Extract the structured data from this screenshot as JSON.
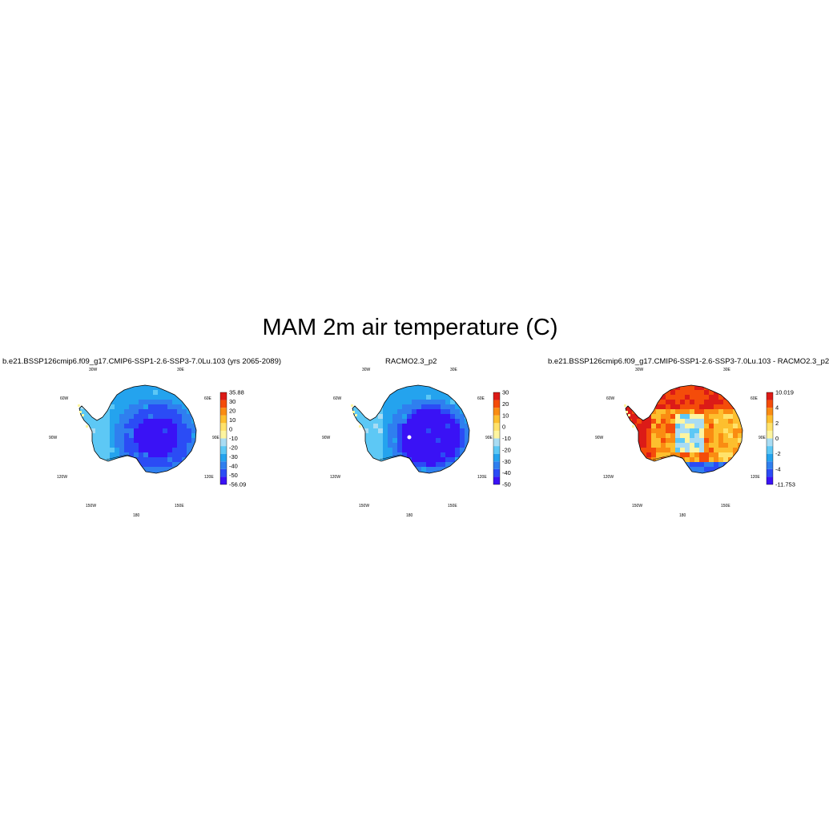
{
  "title": "MAM 2m air temperature (C)",
  "lon_labels": {
    "l30w": "30W",
    "l30e": "30E",
    "l60w": "60W",
    "l60e": "60E",
    "l90w": "90W",
    "l90e": "90E",
    "l120w": "120W",
    "l120e": "120E",
    "l150w": "150W",
    "l150e": "150E",
    "l180": "180"
  },
  "panels": [
    {
      "title": "b.e21.BSSP126cmip6.f09_g17.CMIP6-SSP1-2.6-SSP3-7.0Lu.103 (yrs 2065-2089)",
      "field": "cold",
      "colorbar": {
        "colors": [
          "#3a12f5",
          "#2b4cf5",
          "#2f7fef",
          "#24a3ee",
          "#5dc8f5",
          "#a9dcf3",
          "#fdf5a0",
          "#ffe26a",
          "#fdbf2e",
          "#fa8c12",
          "#f44c0a",
          "#dc1b17"
        ],
        "labels": [
          "-56.09",
          "-50",
          "-40",
          "-30",
          "-20",
          "-10",
          "0",
          "10",
          "20",
          "30",
          "35.88"
        ]
      }
    },
    {
      "title": "RACMO2.3_p2",
      "field": "cold_racmo",
      "colorbar": {
        "colors": [
          "#3a12f5",
          "#2b4cf5",
          "#2f7fef",
          "#24a3ee",
          "#5dc8f5",
          "#a9dcf3",
          "#fdf5a0",
          "#ffe26a",
          "#fdbf2e",
          "#fa8c12",
          "#f44c0a",
          "#dc1b17"
        ],
        "labels": [
          "-50",
          "-40",
          "-30",
          "-20",
          "-10",
          "0",
          "10",
          "20",
          "30"
        ]
      }
    },
    {
      "title": "b.e21.BSSP126cmip6.f09_g17.CMIP6-SSP1-2.6-SSP3-7.0Lu.103 - RACMO2.3_p2",
      "field": "diff",
      "colorbar": {
        "colors": [
          "#3a12f5",
          "#2b4cf5",
          "#2f7fef",
          "#24a3ee",
          "#5dc8f5",
          "#a9dcf3",
          "#fdf5a0",
          "#ffe26a",
          "#fdbf2e",
          "#fa8c12",
          "#f44c0a",
          "#dc1b17"
        ],
        "labels": [
          "-11.753",
          "-4",
          "-2",
          "0",
          "2",
          "4",
          "10.019"
        ]
      }
    }
  ]
}
